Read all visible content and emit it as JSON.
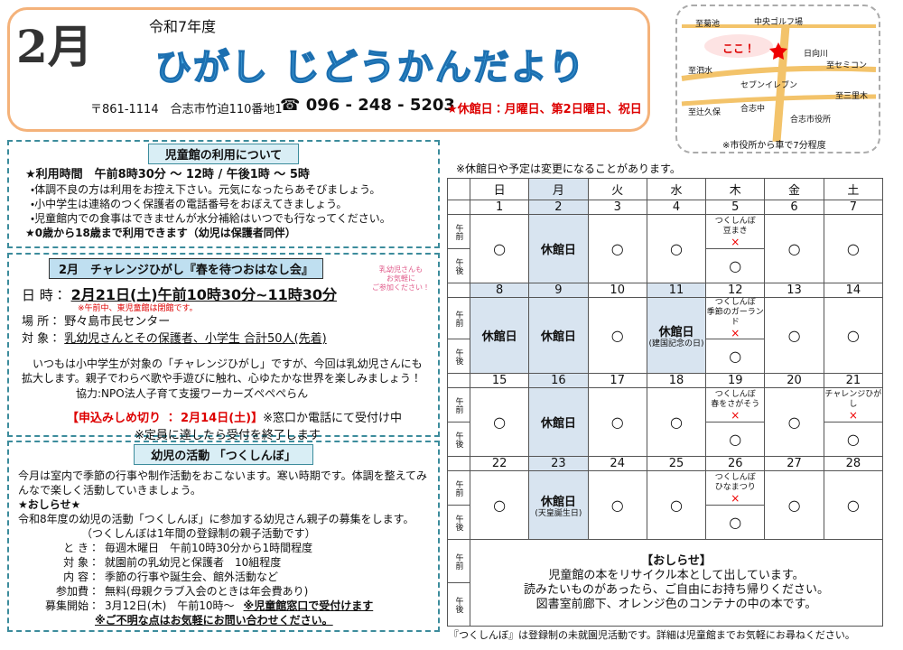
{
  "header": {
    "month_icon": "2月",
    "era": "令和7年度",
    "title": "ひがし じどうかんだより",
    "address": "〒861-1114　合志市竹迫110番地1",
    "phone": "☎ 096 - 248 - 5203",
    "closed_days": "★休館日：月曜日、第2日曜日、祝日"
  },
  "map": {
    "labels": [
      "至菊池",
      "中央ゴルフ場",
      "ここ！",
      "日向川",
      "至泗水",
      "至セミコン",
      "セブンイレブン",
      "至三里木",
      "至辻久保",
      "合志中",
      "合志市役所"
    ],
    "note": "※市役所から車で7分程度"
  },
  "usage": {
    "title": "児童館の利用について",
    "hours": "★利用時間　午前8時30分 ～ 12時 / 午後1時 ～ 5時",
    "lines": [
      "・体調不良の方は利用をお控え下さい。元気になったらあそびましょう。",
      "・小中学生は連絡のつく保護者の電話番号をおぼえてきましょう。",
      "・児童館内での食事はできませんが水分補給はいつでも行なってください。"
    ],
    "ages": "★0歳から18歳まで利用できます（幼児は保護者同伴）"
  },
  "challenge": {
    "title": "2月　チャレンジひがし『春を待つおはなし会』",
    "side_note": [
      "乳幼児さんも",
      "お気軽に",
      "ご参加ください！"
    ],
    "rows": [
      {
        "label": "日 時：",
        "value": "2月21日(土)午前10時30分~11時30分",
        "note": "※午前中、東児童館は閉館です。"
      },
      {
        "label": "場 所：",
        "value": "野々島市民センター"
      },
      {
        "label": "対 象：",
        "value": "乳幼児さんとその保護者、小学生 合計50人(先着)"
      }
    ],
    "description": "いつもは小中学生が対象の「チャレンジひがし」ですが、今回は乳幼児さんにも拡大します。親子でわらべ歌や手遊びに触れ、心ゆたかな世界を楽しみましょう！",
    "cooperation": "協力:NPO法人子育て支援ワーカーズぺぺぺらん",
    "deadline": "【申込みしめ切り ： 2月14日(土)】",
    "deadline_note": "※窓口か電話にて受付け中",
    "capacity_note": "※定員に達したら受付を終了します"
  },
  "tsukushinbo": {
    "title": "幼児の活動 「つくしんぼ」",
    "intro": "今月は室内で季節の行事や制作活動をおこないます。寒い時期です。体調を整えてみんなで楽しく活動していきましょう。",
    "notice_title": "★おしらせ★",
    "recruit": "令和8年度の幼児の活動「つくしんぼ」に参加する幼児さん親子の募集をします。",
    "recruit_note": "（つくしんぼは1年間の登録制の親子活動です）",
    "rows": [
      {
        "label": "と き：",
        "value": "毎週木曜日　午前10時30分から1時間程度"
      },
      {
        "label": "対 象：",
        "value": "就園前の乳幼児と保護者　10組程度"
      },
      {
        "label": "内 容：",
        "value": "季節の行事や誕生会、館外活動など"
      },
      {
        "label": "参加費：",
        "value": "無料(母親クラブ入会のときは年会費あり)"
      },
      {
        "label": "募集開始：",
        "value": "3月12日(木)　午前10時～",
        "note": "※児童館窓口で受付けます"
      }
    ],
    "contact": "※ご不明な点はお気軽にお問い合わせください。"
  },
  "calendar": {
    "note": "※休館日や予定は変更になることがあります。",
    "weekdays": [
      "日",
      "月",
      "火",
      "水",
      "木",
      "金",
      "土"
    ],
    "am_label": "午前",
    "pm_label": "午後",
    "weeks": [
      [
        {
          "date": 1,
          "mark": "○"
        },
        {
          "date": 2,
          "closed": "休館日"
        },
        {
          "date": 3,
          "mark": "○"
        },
        {
          "date": 4,
          "mark": "○"
        },
        {
          "date": 5,
          "am": [
            "つくしんぼ",
            "豆まき"
          ],
          "am_mark": "×",
          "pm": "○"
        },
        {
          "date": 6,
          "mark": "○"
        },
        {
          "date": 7,
          "mark": "○"
        }
      ],
      [
        {
          "date": 8,
          "closed": "休館日"
        },
        {
          "date": 9,
          "closed": "休館日"
        },
        {
          "date": 10,
          "mark": "○"
        },
        {
          "date": 11,
          "closed": "休館日",
          "note": "(建国記念の日)"
        },
        {
          "date": 12,
          "am": [
            "つくしんぼ",
            "季節のガーランド"
          ],
          "am_mark": "×",
          "pm": "○"
        },
        {
          "date": 13,
          "mark": "○"
        },
        {
          "date": 14,
          "mark": "○"
        }
      ],
      [
        {
          "date": 15,
          "mark": "○"
        },
        {
          "date": 16,
          "closed": "休館日"
        },
        {
          "date": 17,
          "mark": "○"
        },
        {
          "date": 18,
          "mark": "○"
        },
        {
          "date": 19,
          "am": [
            "つくしんぼ",
            "春をさがそう"
          ],
          "am_mark": "×",
          "pm": "○"
        },
        {
          "date": 20,
          "mark": "○"
        },
        {
          "date": 21,
          "am": [
            "チャレンジひがし"
          ],
          "am_mark": "×",
          "pm": "○"
        }
      ],
      [
        {
          "date": 22,
          "mark": "○"
        },
        {
          "date": 23,
          "closed": "休館日",
          "note": "(天皇誕生日)"
        },
        {
          "date": 24,
          "mark": "○"
        },
        {
          "date": 25,
          "mark": "○"
        },
        {
          "date": 26,
          "am": [
            "つくしんぼ",
            "ひなまつり"
          ],
          "am_mark": "×",
          "pm": "○"
        },
        {
          "date": 27,
          "mark": "○"
        },
        {
          "date": 28,
          "mark": "○"
        }
      ]
    ],
    "notice": {
      "title": "【おしらせ】",
      "lines": [
        "児童館の本をリサイクル本として出しています。",
        "読みたいものがあったら、ご自由にお持ち帰りください。",
        "図書室前廊下、オレンジ色のコンテナの中の本です。"
      ]
    }
  },
  "footer": "『つくしんぼ』は登録制の未就園児活動です。詳細は児童館までお気軽にお尋ねください。"
}
